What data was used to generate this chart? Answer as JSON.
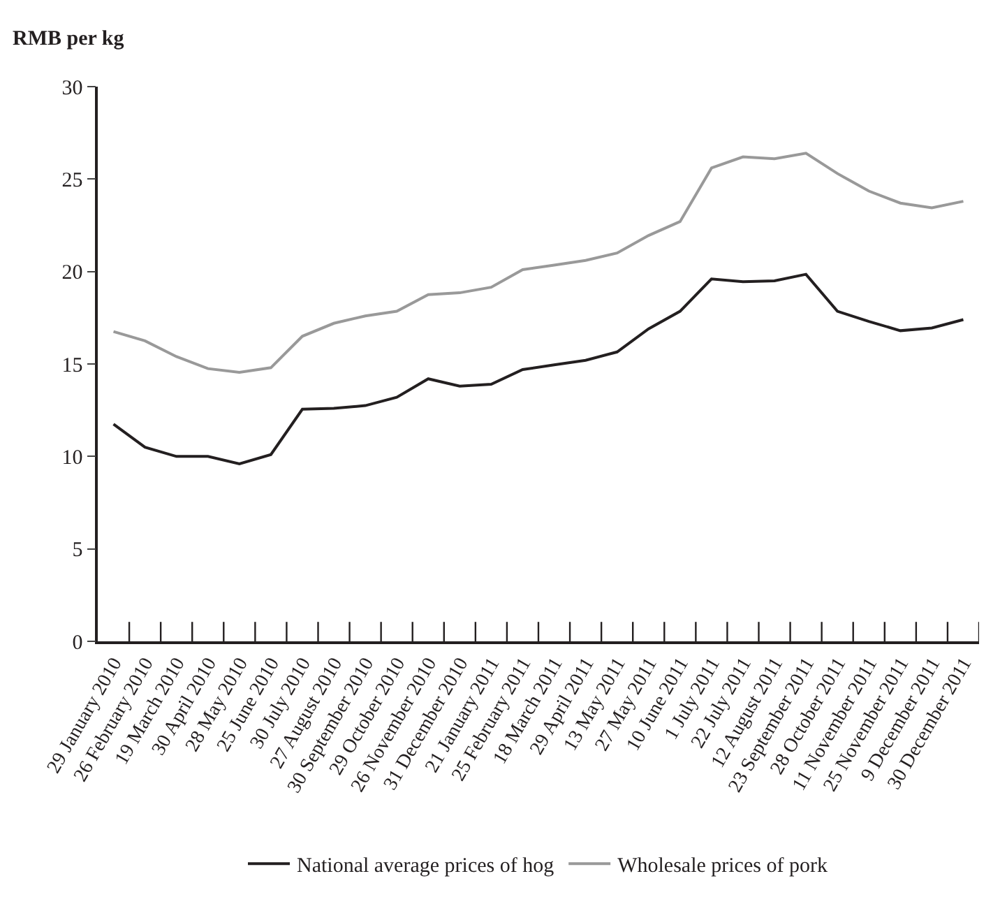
{
  "chart_data": {
    "type": "line",
    "ylabel": "RMB per kg",
    "categories": [
      "29 January 2010",
      "26 February 2010",
      "19 March 2010",
      "30 April 2010",
      "28 May 2010",
      "25 June 2010",
      "30 July 2010",
      "27 August 2010",
      "30 September 2010",
      "29 October 2010",
      "26 November 2010",
      "31 December 2010",
      "21 January 2011",
      "25 February 2011",
      "18 March 2011",
      "29 April 2011",
      "13 May 2011",
      "27 May 2011",
      "10 June 2011",
      "1 July 2011",
      "22 July 2011",
      "12 August 2011",
      "23 September 2011",
      "28 October 2011",
      "11 November 2011",
      "25 November 2011",
      "9 December 2011",
      "30 December 2011"
    ],
    "series": [
      {
        "name": "National average prices of hog",
        "color": "#231f20",
        "values": [
          11.75,
          10.5,
          10.0,
          10.0,
          9.6,
          10.1,
          12.55,
          12.6,
          12.75,
          13.2,
          14.2,
          13.8,
          13.9,
          14.7,
          14.95,
          15.2,
          15.65,
          16.9,
          17.85,
          19.6,
          19.45,
          19.5,
          19.85,
          17.85,
          17.3,
          16.8,
          16.95,
          17.4
        ]
      },
      {
        "name": "Wholesale prices of pork",
        "color": "#999999",
        "values": [
          16.75,
          16.25,
          15.4,
          14.75,
          14.55,
          14.8,
          16.5,
          17.2,
          17.6,
          17.85,
          18.75,
          18.85,
          19.15,
          20.1,
          20.35,
          20.6,
          21.0,
          21.95,
          22.7,
          25.6,
          26.2,
          26.1,
          26.4,
          25.3,
          24.35,
          23.7,
          23.45,
          23.8
        ]
      }
    ],
    "ylim": [
      0,
      30
    ],
    "yticks": [
      0,
      5,
      10,
      15,
      20,
      25,
      30
    ],
    "legend": "bottom",
    "marker": "none",
    "line_style": "solid"
  }
}
